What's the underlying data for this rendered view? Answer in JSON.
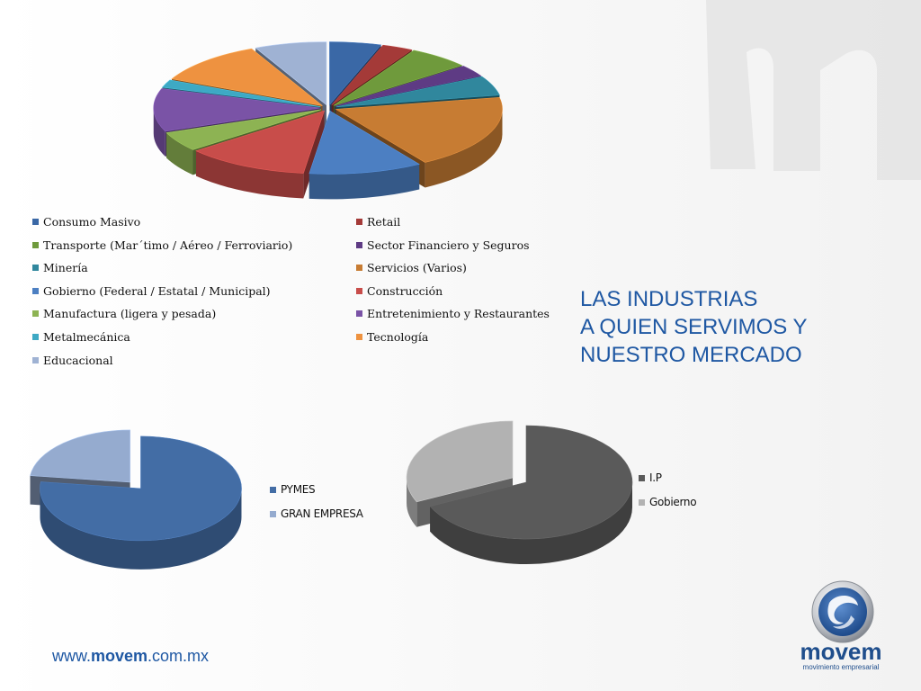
{
  "slide": {
    "title_lines": [
      "LAS INDUSTRIAS",
      "A QUIEN SERVIMOS Y",
      "NUESTRO MERCADO"
    ],
    "website": {
      "prefix": "www.",
      "brand": "movem",
      "suffix": ".com.mx"
    },
    "logo": {
      "brand": "movem",
      "tagline": "movimiento empresarial",
      "icon": "movem-swirl-logo"
    },
    "colors": {
      "title": "#1f58a3",
      "logo_blue": "#1f4e8c"
    }
  },
  "chart_data": [
    {
      "type": "pie",
      "title": "",
      "style": "3d-exploded",
      "legend_position": "bottom",
      "categories": [
        "Consumo Masivo",
        "Retail",
        "Transporte  (Mar´timo / Aéreo / Ferroviario)",
        "Sector Financiero y Seguros",
        "Minería",
        "Servicios (Varios)",
        "Gobierno (Federal / Estatal / Municipal)",
        "Construcción",
        "Manufactura (ligera y pesada)",
        "Entretenimiento y Restaurantes",
        "Metalmecánica",
        "Tecnología",
        "Educacional"
      ],
      "values": [
        5,
        3,
        6,
        3,
        5,
        19,
        11,
        12,
        5,
        11,
        2,
        11,
        7
      ],
      "colors": [
        "#3a68a6",
        "#a43a38",
        "#6f9a3c",
        "#5e3b84",
        "#30879d",
        "#c77c33",
        "#4c7fc2",
        "#c84d4a",
        "#8db353",
        "#7a53a6",
        "#3ea9c4",
        "#ee9240",
        "#9fb2d3"
      ]
    },
    {
      "type": "pie",
      "title": "",
      "style": "3d-exploded",
      "legend_position": "right",
      "categories": [
        "PYMES",
        "GRAN EMPRESA"
      ],
      "values": [
        77,
        23
      ],
      "colors": [
        "#436da5",
        "#95abcf"
      ]
    },
    {
      "type": "pie",
      "title": "",
      "style": "3d-exploded",
      "legend_position": "right",
      "categories": [
        "I.P",
        "Gobierno"
      ],
      "values": [
        68,
        32
      ],
      "colors": [
        "#5a5a5a",
        "#b2b2b2"
      ]
    }
  ]
}
